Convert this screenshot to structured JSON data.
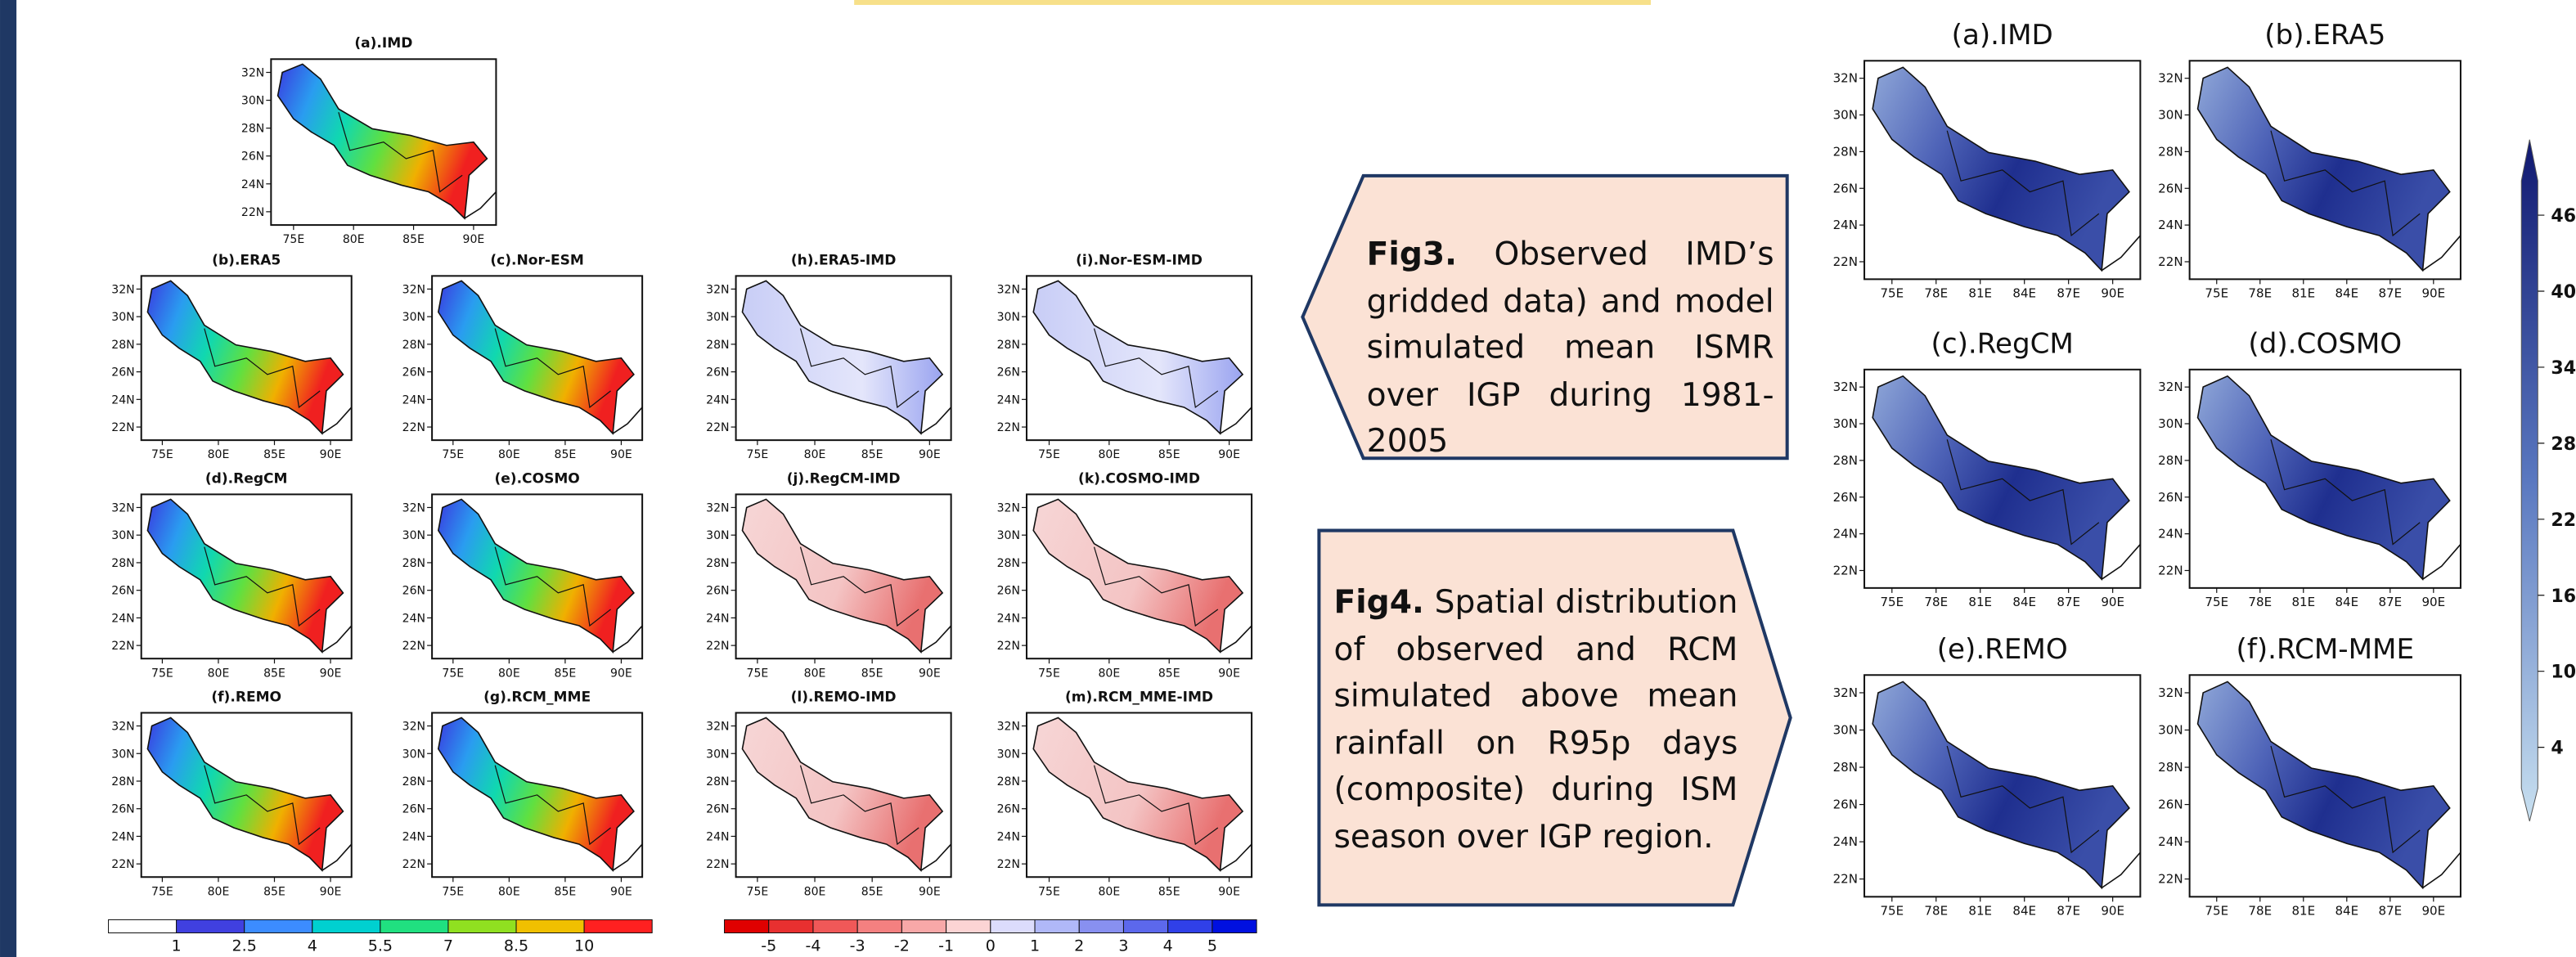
{
  "fig3": {
    "panels": [
      "(a).IMD",
      "(b).ERA5",
      "(c).Nor-ESM",
      "(d).RegCM",
      "(e).COSMO",
      "(f).REMO",
      "(g).RCM_MME",
      "(h).ERA5-IMD",
      "(i).Nor-ESM-IMD",
      "(j).RegCM-IMD",
      "(k).COSMO-IMD",
      "(l).REMO-IMD",
      "(m).RCM_MME-IMD"
    ],
    "lat_ticks": [
      "32N",
      "30N",
      "28N",
      "26N",
      "24N",
      "22N"
    ],
    "lon_ticks": [
      "75E",
      "80E",
      "85E",
      "90E"
    ],
    "colorbar_mean": [
      1,
      2.5,
      4,
      5.5,
      7,
      8.5,
      10
    ],
    "colorbar_diff": [
      -5,
      -4,
      -3,
      -2,
      -1,
      0,
      1,
      2,
      3,
      4,
      5
    ]
  },
  "captions": {
    "fig3": {
      "label": "Fig3.",
      "text": "Observed IMD’s gridded data) and model simulated mean ISMR over IGP during 1981-2005"
    },
    "fig4": {
      "label": "Fig4.",
      "text": "Spatial distribution of observed and RCM simulated above mean rainfall on R95p days (composite) during ISM season over IGP region."
    }
  },
  "fig4": {
    "panels": [
      "(a).IMD",
      "(b).ERA5",
      "(c).RegCM",
      "(d).COSMO",
      "(e).REMO",
      "(f).RCM-MME"
    ],
    "lat_ticks": [
      "32N",
      "30N",
      "28N",
      "26N",
      "24N",
      "22N"
    ],
    "lon_ticks": [
      "75E",
      "78E",
      "81E",
      "84E",
      "87E",
      "90E"
    ],
    "colorbar": [
      46,
      40,
      34,
      28,
      22,
      16,
      10,
      4
    ]
  }
}
